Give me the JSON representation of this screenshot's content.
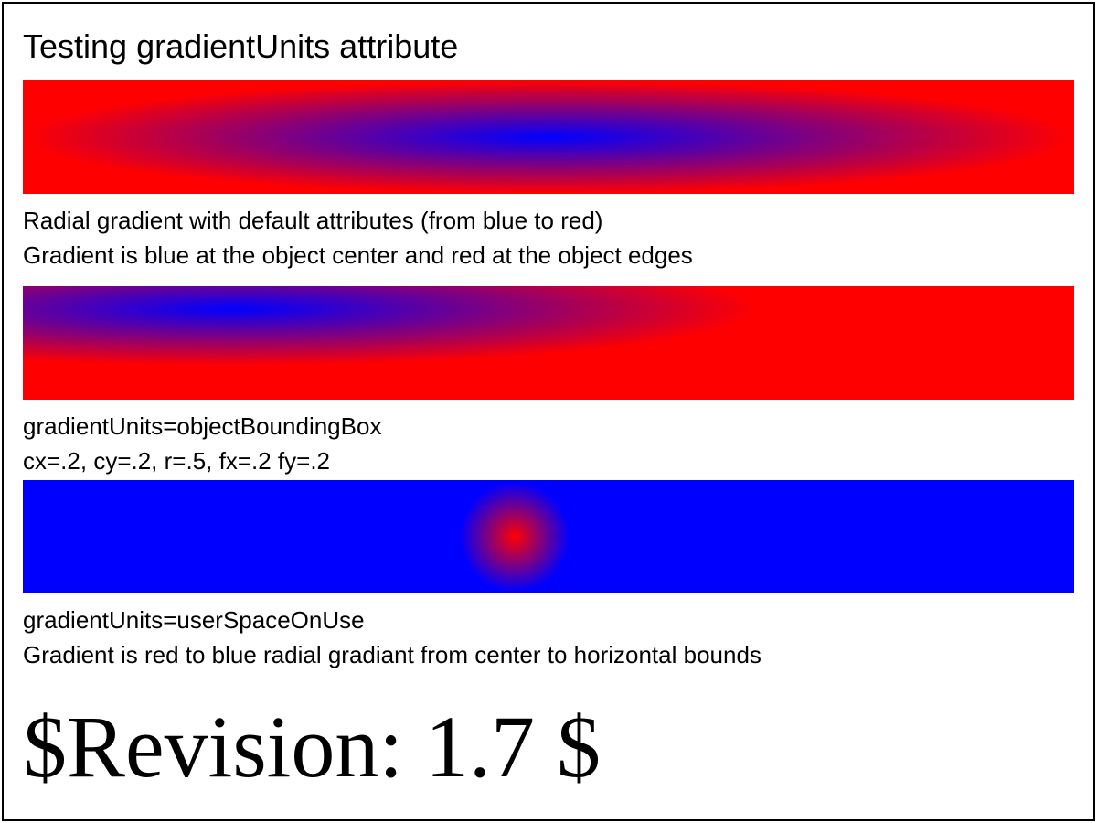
{
  "title": "Testing gradientUnits attribute",
  "colors": {
    "blue": "#0000ff",
    "red": "#ff0000",
    "border": "#000000",
    "background": "#ffffff"
  },
  "panels": [
    {
      "caption_line1": "Radial gradient with default attributes (from blue to red)",
      "caption_line2": "Gradient is blue at the object center and red at the object edges"
    },
    {
      "caption_line1": "gradientUnits=objectBoundingBox",
      "caption_line2": "cx=.2, cy=.2, r=.5, fx=.2 fy=.2"
    },
    {
      "caption_line1": "gradientUnits=userSpaceOnUse",
      "caption_line2": "Gradient is red to blue radial gradiant from center to horizontal bounds"
    }
  ],
  "revision": "$Revision: 1.7 $"
}
